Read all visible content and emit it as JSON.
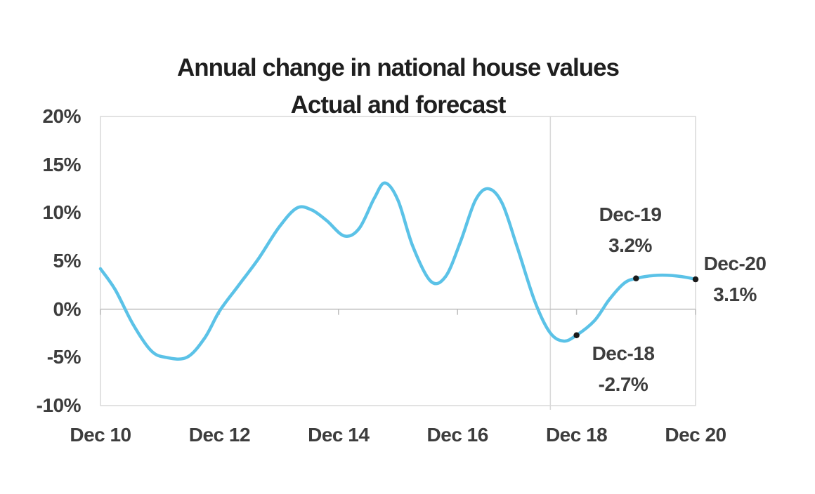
{
  "window": {
    "background": "#ffffff"
  },
  "chart": {
    "colors": {
      "line": "#5bc2e7",
      "marker": "#1a1a1a",
      "grid": "#d9d9d9",
      "zero_axis": "#bdbdbd",
      "title_text": "#1f1f1f",
      "axis_text": "#3d3d3d",
      "annotation_text": "#3d3d3d"
    }
  },
  "chart_data": {
    "type": "line",
    "title": "Annual change in national house values",
    "subtitle": "Actual and forecast",
    "xlabel": "",
    "ylabel": "",
    "legend": "none",
    "x_axis": {
      "tick_labels": [
        "Dec 10",
        "Dec 12",
        "Dec 14",
        "Dec 16",
        "Dec 18",
        "Dec 20"
      ],
      "tick_years": [
        0,
        2,
        4,
        6,
        8,
        10
      ],
      "range_years": [
        0,
        10
      ]
    },
    "y_axis": {
      "tick_labels": [
        "20%",
        "15%",
        "10%",
        "5%",
        "0%",
        "-5%",
        "-10%"
      ],
      "tick_values": [
        20,
        15,
        10,
        5,
        0,
        -5,
        -10
      ],
      "ylim": [
        -10,
        20
      ],
      "unit": "%"
    },
    "series": [
      {
        "name": "Annual change in national house values (actual and forecast)",
        "points": [
          [
            0.0,
            4.2
          ],
          [
            0.25,
            2.0
          ],
          [
            0.55,
            -1.6
          ],
          [
            0.85,
            -4.3
          ],
          [
            1.1,
            -5.0
          ],
          [
            1.45,
            -5.0
          ],
          [
            1.75,
            -3.0
          ],
          [
            2.0,
            -0.2
          ],
          [
            2.3,
            2.3
          ],
          [
            2.65,
            5.2
          ],
          [
            3.0,
            8.5
          ],
          [
            3.3,
            10.5
          ],
          [
            3.55,
            10.3
          ],
          [
            3.8,
            9.2
          ],
          [
            4.1,
            7.6
          ],
          [
            4.35,
            8.4
          ],
          [
            4.6,
            11.5
          ],
          [
            4.78,
            13.1
          ],
          [
            5.0,
            11.3
          ],
          [
            5.25,
            6.5
          ],
          [
            5.55,
            2.9
          ],
          [
            5.8,
            3.4
          ],
          [
            6.05,
            7.0
          ],
          [
            6.3,
            11.3
          ],
          [
            6.52,
            12.5
          ],
          [
            6.75,
            11.0
          ],
          [
            7.0,
            6.5
          ],
          [
            7.3,
            0.8
          ],
          [
            7.55,
            -2.4
          ],
          [
            7.78,
            -3.3
          ],
          [
            8.0,
            -2.7
          ],
          [
            8.3,
            -1.2
          ],
          [
            8.55,
            1.0
          ],
          [
            8.8,
            2.7
          ],
          [
            9.0,
            3.2
          ],
          [
            9.3,
            3.5
          ],
          [
            9.6,
            3.5
          ],
          [
            9.85,
            3.3
          ],
          [
            10.0,
            3.1
          ]
        ]
      }
    ],
    "markers": [
      {
        "label": "Dec-18",
        "value_label": "-2.7%",
        "year": 8,
        "value": -2.7
      },
      {
        "label": "Dec-19",
        "value_label": "3.2%",
        "year": 9,
        "value": 3.2
      },
      {
        "label": "Dec-20",
        "value_label": "3.1%",
        "year": 10,
        "value": 3.1
      }
    ],
    "forecast_divider_year": 7.56
  }
}
